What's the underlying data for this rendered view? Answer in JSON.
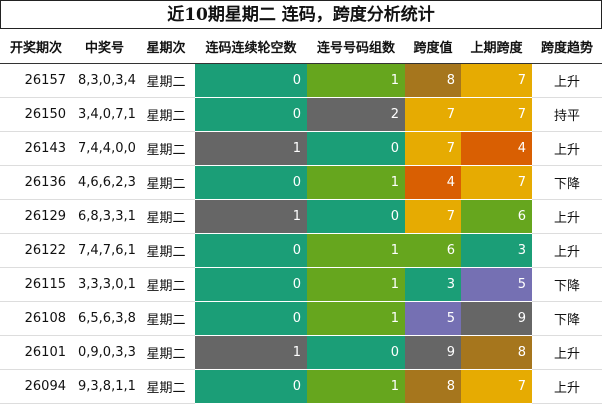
{
  "title": "近10期星期二 连码，跨度分析统计",
  "table": {
    "header": [
      "开奖期次",
      "中奖号",
      "星期次",
      "连码连续轮空数",
      "连号号码组数",
      "跨度值",
      "上期跨度",
      "跨度趋势"
    ],
    "rows": [
      [
        "26157",
        "8,3,0,3,4",
        "星期二",
        "0",
        "1",
        "8",
        "7",
        "上升"
      ],
      [
        "26150",
        "3,4,0,7,1",
        "星期二",
        "0",
        "2",
        "7",
        "7",
        "持平"
      ],
      [
        "26143",
        "7,4,4,0,0",
        "星期二",
        "1",
        "0",
        "7",
        "4",
        "上升"
      ],
      [
        "26136",
        "4,6,6,2,3",
        "星期二",
        "0",
        "1",
        "4",
        "7",
        "下降"
      ],
      [
        "26129",
        "6,8,3,3,1",
        "星期二",
        "1",
        "0",
        "7",
        "6",
        "上升"
      ],
      [
        "26122",
        "7,4,7,6,1",
        "星期二",
        "0",
        "1",
        "6",
        "3",
        "上升"
      ],
      [
        "26115",
        "3,3,3,0,1",
        "星期二",
        "0",
        "1",
        "3",
        "5",
        "下降"
      ],
      [
        "26108",
        "6,5,6,3,8",
        "星期二",
        "0",
        "1",
        "5",
        "9",
        "下降"
      ],
      [
        "26101",
        "0,9,0,3,3",
        "星期二",
        "1",
        "0",
        "9",
        "8",
        "上升"
      ],
      [
        "26094",
        "9,3,8,1,1",
        "星期二",
        "0",
        "1",
        "8",
        "7",
        "上升"
      ]
    ],
    "colors": [
      [
        "#1b9e77",
        "#66a61e",
        "#a6761d",
        "#e6ab02"
      ],
      [
        "#1b9e77",
        "#666666",
        "#e6ab02",
        "#e6ab02"
      ],
      [
        "#666666",
        "#1b9e77",
        "#e6ab02",
        "#d95f02"
      ],
      [
        "#1b9e77",
        "#66a61e",
        "#d95f02",
        "#e6ab02"
      ],
      [
        "#666666",
        "#1b9e77",
        "#e6ab02",
        "#66a61e"
      ],
      [
        "#1b9e77",
        "#66a61e",
        "#66a61e",
        "#1b9e77"
      ],
      [
        "#1b9e77",
        "#66a61e",
        "#1b9e77",
        "#7570b3"
      ],
      [
        "#1b9e77",
        "#66a61e",
        "#7570b3",
        "#666666"
      ],
      [
        "#666666",
        "#1b9e77",
        "#666666",
        "#a6761d"
      ],
      [
        "#1b9e77",
        "#66a61e",
        "#a6761d",
        "#e6ab02"
      ]
    ]
  }
}
